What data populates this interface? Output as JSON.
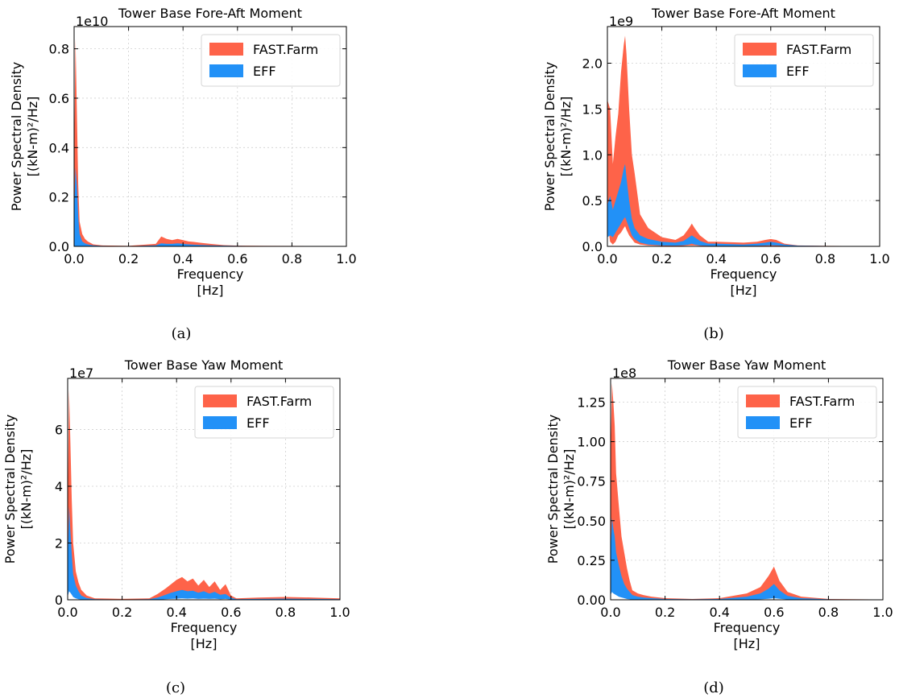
{
  "figure": {
    "background": "#ffffff"
  },
  "colors": {
    "fast_farm": "#fe6349",
    "eff": "#2291f7",
    "grid": "#cfcfcf"
  },
  "chart_data": [
    {
      "id": "a",
      "type": "area",
      "caption": "(a)",
      "title": "Tower Base Fore-Aft Moment",
      "xlabel": [
        "Frequency",
        "[Hz]"
      ],
      "ylabel": [
        "Power Spectral Density",
        "[(kN-m)²/Hz]"
      ],
      "offset_label": "1e10",
      "xlim": [
        0.0,
        1.0
      ],
      "ylim": [
        0.0,
        0.89
      ],
      "xticks": [
        "0.0",
        "0.2",
        "0.4",
        "0.6",
        "0.8",
        "1.0"
      ],
      "yticks": [
        "0.0",
        "0.2",
        "0.4",
        "0.6",
        "0.8"
      ],
      "ytick_values": [
        0.0,
        0.2,
        0.4,
        0.6,
        0.8
      ],
      "grid": true,
      "legend_position": "top-right",
      "series": [
        {
          "name": "FAST.Farm",
          "x": [
            0.0,
            0.005,
            0.01,
            0.015,
            0.02,
            0.03,
            0.04,
            0.05,
            0.07,
            0.1,
            0.2,
            0.3,
            0.32,
            0.34,
            0.36,
            0.38,
            0.4,
            0.42,
            0.44,
            0.46,
            0.5,
            0.55,
            0.6,
            0.7,
            1.0
          ],
          "upper": [
            0.35,
            0.84,
            0.55,
            0.25,
            0.1,
            0.05,
            0.03,
            0.02,
            0.008,
            0.004,
            0.002,
            0.01,
            0.04,
            0.03,
            0.025,
            0.03,
            0.025,
            0.02,
            0.018,
            0.015,
            0.01,
            0.005,
            0.003,
            0.002,
            0.001
          ],
          "lower": [
            0.0,
            0.0,
            0.0,
            0.0,
            0.0,
            0.0,
            0.0,
            0.0,
            0.0,
            0.0,
            0.0,
            0.0,
            0.0,
            0.0,
            0.0,
            0.0,
            0.0,
            0.0,
            0.0,
            0.0,
            0.0,
            0.0,
            0.0,
            0.0,
            0.0
          ]
        },
        {
          "name": "EFF",
          "x": [
            0.0,
            0.005,
            0.01,
            0.015,
            0.02,
            0.03,
            0.04,
            0.05,
            0.07,
            0.1,
            0.2,
            0.3,
            0.32,
            0.34,
            0.36,
            0.38,
            0.4,
            0.42,
            0.44,
            0.46,
            0.5,
            0.55,
            0.6,
            0.7,
            1.0
          ],
          "upper": [
            0.12,
            0.32,
            0.25,
            0.12,
            0.05,
            0.02,
            0.012,
            0.008,
            0.004,
            0.002,
            0.001,
            0.004,
            0.012,
            0.01,
            0.01,
            0.012,
            0.01,
            0.008,
            0.007,
            0.006,
            0.004,
            0.003,
            0.002,
            0.001,
            0.0005
          ],
          "lower": [
            0.0,
            0.0,
            0.0,
            0.0,
            0.0,
            0.0,
            0.0,
            0.0,
            0.0,
            0.0,
            0.0,
            0.0,
            0.0,
            0.0,
            0.0,
            0.0,
            0.0,
            0.0,
            0.0,
            0.0,
            0.0,
            0.0,
            0.0,
            0.0,
            0.0
          ]
        }
      ]
    },
    {
      "id": "b",
      "type": "area",
      "caption": "(b)",
      "title": "Tower Base Fore-Aft Moment",
      "xlabel": [
        "Frequency",
        "[Hz]"
      ],
      "ylabel": [
        "Power Spectral Density",
        "[(kN-m)²/Hz]"
      ],
      "offset_label": "1e9",
      "xlim": [
        0.0,
        1.0
      ],
      "ylim": [
        0.0,
        2.4
      ],
      "xticks": [
        "0.0",
        "0.2",
        "0.4",
        "0.6",
        "0.8",
        "1.0"
      ],
      "yticks": [
        "0.0",
        "0.5",
        "1.0",
        "1.5",
        "2.0"
      ],
      "ytick_values": [
        0.0,
        0.5,
        1.0,
        1.5,
        2.0
      ],
      "grid": true,
      "legend_position": "top-right",
      "series": [
        {
          "name": "FAST.Farm",
          "x": [
            0.0,
            0.01,
            0.02,
            0.03,
            0.04,
            0.05,
            0.06,
            0.065,
            0.07,
            0.08,
            0.09,
            0.1,
            0.12,
            0.15,
            0.2,
            0.25,
            0.28,
            0.3,
            0.31,
            0.32,
            0.34,
            0.37,
            0.4,
            0.5,
            0.55,
            0.58,
            0.6,
            0.62,
            0.65,
            0.7,
            0.8,
            1.0
          ],
          "upper": [
            1.6,
            1.5,
            0.9,
            1.2,
            1.45,
            1.9,
            2.2,
            2.3,
            2.1,
            1.5,
            1.0,
            0.8,
            0.35,
            0.2,
            0.1,
            0.07,
            0.12,
            0.2,
            0.25,
            0.2,
            0.12,
            0.05,
            0.05,
            0.04,
            0.05,
            0.07,
            0.08,
            0.07,
            0.03,
            0.01,
            0.005,
            0.003
          ],
          "lower": [
            0.25,
            0.05,
            0.02,
            0.05,
            0.12,
            0.15,
            0.2,
            0.22,
            0.18,
            0.12,
            0.08,
            0.04,
            0.02,
            0.01,
            0.005,
            0.003,
            0.005,
            0.01,
            0.01,
            0.01,
            0.005,
            0.002,
            0.002,
            0.002,
            0.003,
            0.004,
            0.005,
            0.004,
            0.002,
            0.001,
            0.0,
            0.0
          ]
        },
        {
          "name": "EFF",
          "x": [
            0.0,
            0.01,
            0.02,
            0.03,
            0.04,
            0.05,
            0.06,
            0.065,
            0.07,
            0.08,
            0.09,
            0.1,
            0.12,
            0.15,
            0.2,
            0.25,
            0.28,
            0.3,
            0.31,
            0.32,
            0.34,
            0.37,
            0.4,
            0.5,
            0.55,
            0.58,
            0.6,
            0.62,
            0.65,
            0.7,
            0.8,
            1.0
          ],
          "upper": [
            0.45,
            0.55,
            0.4,
            0.5,
            0.6,
            0.7,
            0.85,
            0.9,
            0.75,
            0.5,
            0.3,
            0.2,
            0.12,
            0.08,
            0.05,
            0.04,
            0.06,
            0.1,
            0.12,
            0.1,
            0.06,
            0.03,
            0.03,
            0.02,
            0.03,
            0.04,
            0.05,
            0.04,
            0.02,
            0.008,
            0.004,
            0.002
          ],
          "lower": [
            0.1,
            0.12,
            0.1,
            0.15,
            0.2,
            0.25,
            0.3,
            0.32,
            0.28,
            0.2,
            0.12,
            0.08,
            0.04,
            0.02,
            0.01,
            0.008,
            0.012,
            0.02,
            0.03,
            0.02,
            0.01,
            0.005,
            0.005,
            0.004,
            0.006,
            0.01,
            0.012,
            0.01,
            0.005,
            0.002,
            0.001,
            0.0
          ]
        }
      ]
    },
    {
      "id": "c",
      "type": "area",
      "caption": "(c)",
      "title": "Tower Base Yaw Moment",
      "xlabel": [
        "Frequency",
        "[Hz]"
      ],
      "ylabel": [
        "Power Spectral Density",
        "[(kN-m)²/Hz]"
      ],
      "offset_label": "1e7",
      "xlim": [
        0.0,
        1.0
      ],
      "ylim": [
        0.0,
        7.8
      ],
      "xticks": [
        "0.0",
        "0.2",
        "0.4",
        "0.6",
        "0.8",
        "1.0"
      ],
      "yticks": [
        "0",
        "2",
        "4",
        "6"
      ],
      "ytick_values": [
        0,
        2,
        4,
        6
      ],
      "grid": true,
      "legend_position": "top-right",
      "series": [
        {
          "name": "FAST.Farm",
          "x": [
            0.0,
            0.005,
            0.01,
            0.015,
            0.02,
            0.03,
            0.04,
            0.05,
            0.07,
            0.1,
            0.2,
            0.3,
            0.33,
            0.36,
            0.38,
            0.4,
            0.42,
            0.44,
            0.46,
            0.48,
            0.5,
            0.52,
            0.54,
            0.56,
            0.58,
            0.6,
            0.62,
            0.7,
            0.8,
            0.9,
            1.0
          ],
          "upper": [
            3.0,
            7.4,
            5.5,
            3.5,
            2.0,
            1.0,
            0.6,
            0.35,
            0.15,
            0.05,
            0.03,
            0.05,
            0.2,
            0.4,
            0.55,
            0.7,
            0.8,
            0.65,
            0.75,
            0.5,
            0.7,
            0.45,
            0.65,
            0.35,
            0.55,
            0.15,
            0.05,
            0.08,
            0.1,
            0.08,
            0.05
          ],
          "lower": [
            0.2,
            0.5,
            0.4,
            0.3,
            0.2,
            0.1,
            0.05,
            0.03,
            0.01,
            0.0,
            0.0,
            0.0,
            0.01,
            0.03,
            0.05,
            0.07,
            0.08,
            0.07,
            0.08,
            0.06,
            0.07,
            0.05,
            0.06,
            0.04,
            0.05,
            0.02,
            0.0,
            0.0,
            0.0,
            0.0,
            0.0
          ]
        },
        {
          "name": "EFF",
          "x": [
            0.0,
            0.005,
            0.01,
            0.015,
            0.02,
            0.03,
            0.04,
            0.05,
            0.07,
            0.1,
            0.2,
            0.3,
            0.33,
            0.36,
            0.38,
            0.4,
            0.42,
            0.44,
            0.46,
            0.48,
            0.5,
            0.52,
            0.54,
            0.56,
            0.58,
            0.6,
            0.62,
            0.7,
            0.8,
            0.9,
            1.0
          ],
          "upper": [
            1.2,
            3.3,
            2.4,
            1.6,
            0.9,
            0.5,
            0.3,
            0.15,
            0.06,
            0.02,
            0.01,
            0.02,
            0.08,
            0.18,
            0.25,
            0.3,
            0.35,
            0.3,
            0.32,
            0.25,
            0.3,
            0.22,
            0.28,
            0.18,
            0.2,
            0.07,
            0.02,
            0.03,
            0.04,
            0.03,
            0.02
          ],
          "lower": [
            0.1,
            0.3,
            0.25,
            0.18,
            0.1,
            0.05,
            0.02,
            0.01,
            0.0,
            0.0,
            0.0,
            0.0,
            0.0,
            0.02,
            0.03,
            0.04,
            0.05,
            0.04,
            0.05,
            0.03,
            0.04,
            0.03,
            0.04,
            0.02,
            0.03,
            0.01,
            0.0,
            0.0,
            0.0,
            0.0,
            0.0
          ]
        }
      ]
    },
    {
      "id": "d",
      "type": "area",
      "caption": "(d)",
      "title": "Tower Base Yaw Moment",
      "xlabel": [
        "Frequency",
        "[Hz]"
      ],
      "ylabel": [
        "Power Spectral Density",
        "[(kN-m)²/Hz]"
      ],
      "offset_label": "1e8",
      "xlim": [
        0.0,
        1.0
      ],
      "ylim": [
        0.0,
        1.4
      ],
      "xticks": [
        "0.0",
        "0.2",
        "0.4",
        "0.6",
        "0.8",
        "1.0"
      ],
      "yticks": [
        "0.00",
        "0.25",
        "0.50",
        "0.75",
        "1.00",
        "1.25"
      ],
      "ytick_values": [
        0.0,
        0.25,
        0.5,
        0.75,
        1.0,
        1.25
      ],
      "grid": true,
      "legend_position": "top-right",
      "series": [
        {
          "name": "FAST.Farm",
          "x": [
            0.0,
            0.005,
            0.01,
            0.015,
            0.02,
            0.03,
            0.04,
            0.05,
            0.06,
            0.07,
            0.08,
            0.1,
            0.12,
            0.15,
            0.2,
            0.3,
            0.4,
            0.5,
            0.55,
            0.58,
            0.6,
            0.62,
            0.65,
            0.7,
            0.8,
            1.0
          ],
          "upper": [
            0.9,
            1.37,
            1.25,
            1.1,
            0.8,
            0.6,
            0.4,
            0.3,
            0.2,
            0.12,
            0.06,
            0.04,
            0.03,
            0.02,
            0.01,
            0.005,
            0.01,
            0.04,
            0.08,
            0.15,
            0.21,
            0.12,
            0.05,
            0.02,
            0.005,
            0.002
          ],
          "lower": [
            0.05,
            0.08,
            0.06,
            0.05,
            0.04,
            0.03,
            0.02,
            0.015,
            0.01,
            0.005,
            0.002,
            0.0,
            0.0,
            0.0,
            0.0,
            0.0,
            0.0,
            0.002,
            0.005,
            0.01,
            0.02,
            0.01,
            0.003,
            0.0,
            0.0,
            0.0
          ]
        },
        {
          "name": "EFF",
          "x": [
            0.0,
            0.005,
            0.01,
            0.015,
            0.02,
            0.03,
            0.04,
            0.05,
            0.06,
            0.07,
            0.08,
            0.1,
            0.12,
            0.15,
            0.2,
            0.3,
            0.4,
            0.5,
            0.55,
            0.58,
            0.6,
            0.62,
            0.65,
            0.7,
            0.8,
            1.0
          ],
          "upper": [
            0.3,
            0.52,
            0.45,
            0.4,
            0.3,
            0.22,
            0.15,
            0.1,
            0.07,
            0.05,
            0.03,
            0.02,
            0.015,
            0.01,
            0.005,
            0.003,
            0.005,
            0.02,
            0.04,
            0.07,
            0.1,
            0.06,
            0.025,
            0.01,
            0.003,
            0.001
          ],
          "lower": [
            0.03,
            0.05,
            0.04,
            0.035,
            0.03,
            0.02,
            0.015,
            0.01,
            0.005,
            0.003,
            0.001,
            0.0,
            0.0,
            0.0,
            0.0,
            0.0,
            0.0,
            0.001,
            0.003,
            0.006,
            0.01,
            0.006,
            0.002,
            0.0,
            0.0,
            0.0
          ]
        }
      ]
    }
  ]
}
